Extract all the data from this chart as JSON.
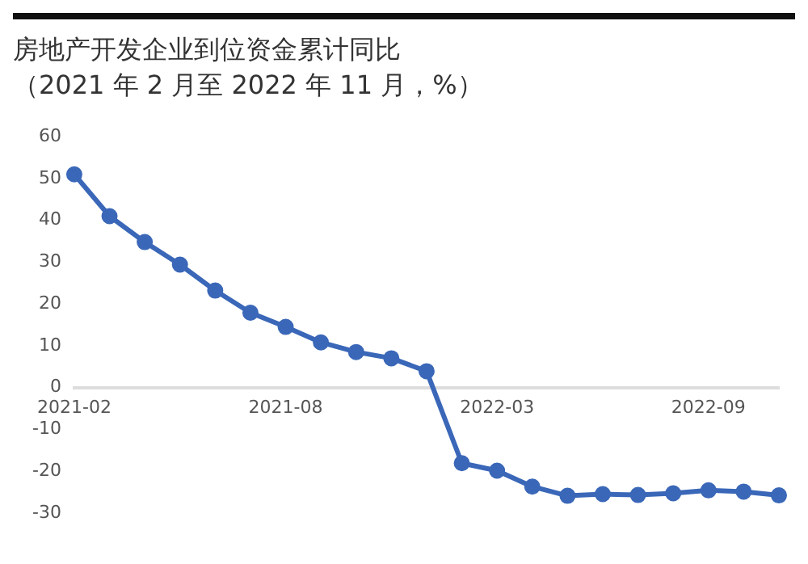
{
  "chart_data": {
    "type": "line",
    "title": "房地产开发企业到位资金累计同比",
    "subtitle": "（2021 年 2 月至 2022 年 11 月，%）",
    "categories": [
      "2021-02",
      null,
      null,
      null,
      null,
      null,
      "2021-08",
      null,
      null,
      null,
      null,
      null,
      "2022-03",
      null,
      null,
      null,
      null,
      null,
      "2022-09",
      null,
      null
    ],
    "series": [
      {
        "color": "#3a67b8",
        "values": [
          51,
          41,
          34.8,
          29.4,
          23.2,
          17.9,
          14.5,
          10.8,
          8.5,
          7.0,
          3.9,
          -18.1,
          -19.9,
          -23.7,
          -25.9,
          -25.5,
          -25.7,
          -25.3,
          -24.6,
          -24.9,
          -25.8
        ]
      }
    ],
    "ylim": [
      -30,
      60
    ],
    "yticks": [
      -30,
      -20,
      -10,
      0,
      10,
      20,
      30,
      40,
      50,
      60
    ],
    "grid": false,
    "legend": false,
    "marker": "circle",
    "line_style": "solid"
  }
}
